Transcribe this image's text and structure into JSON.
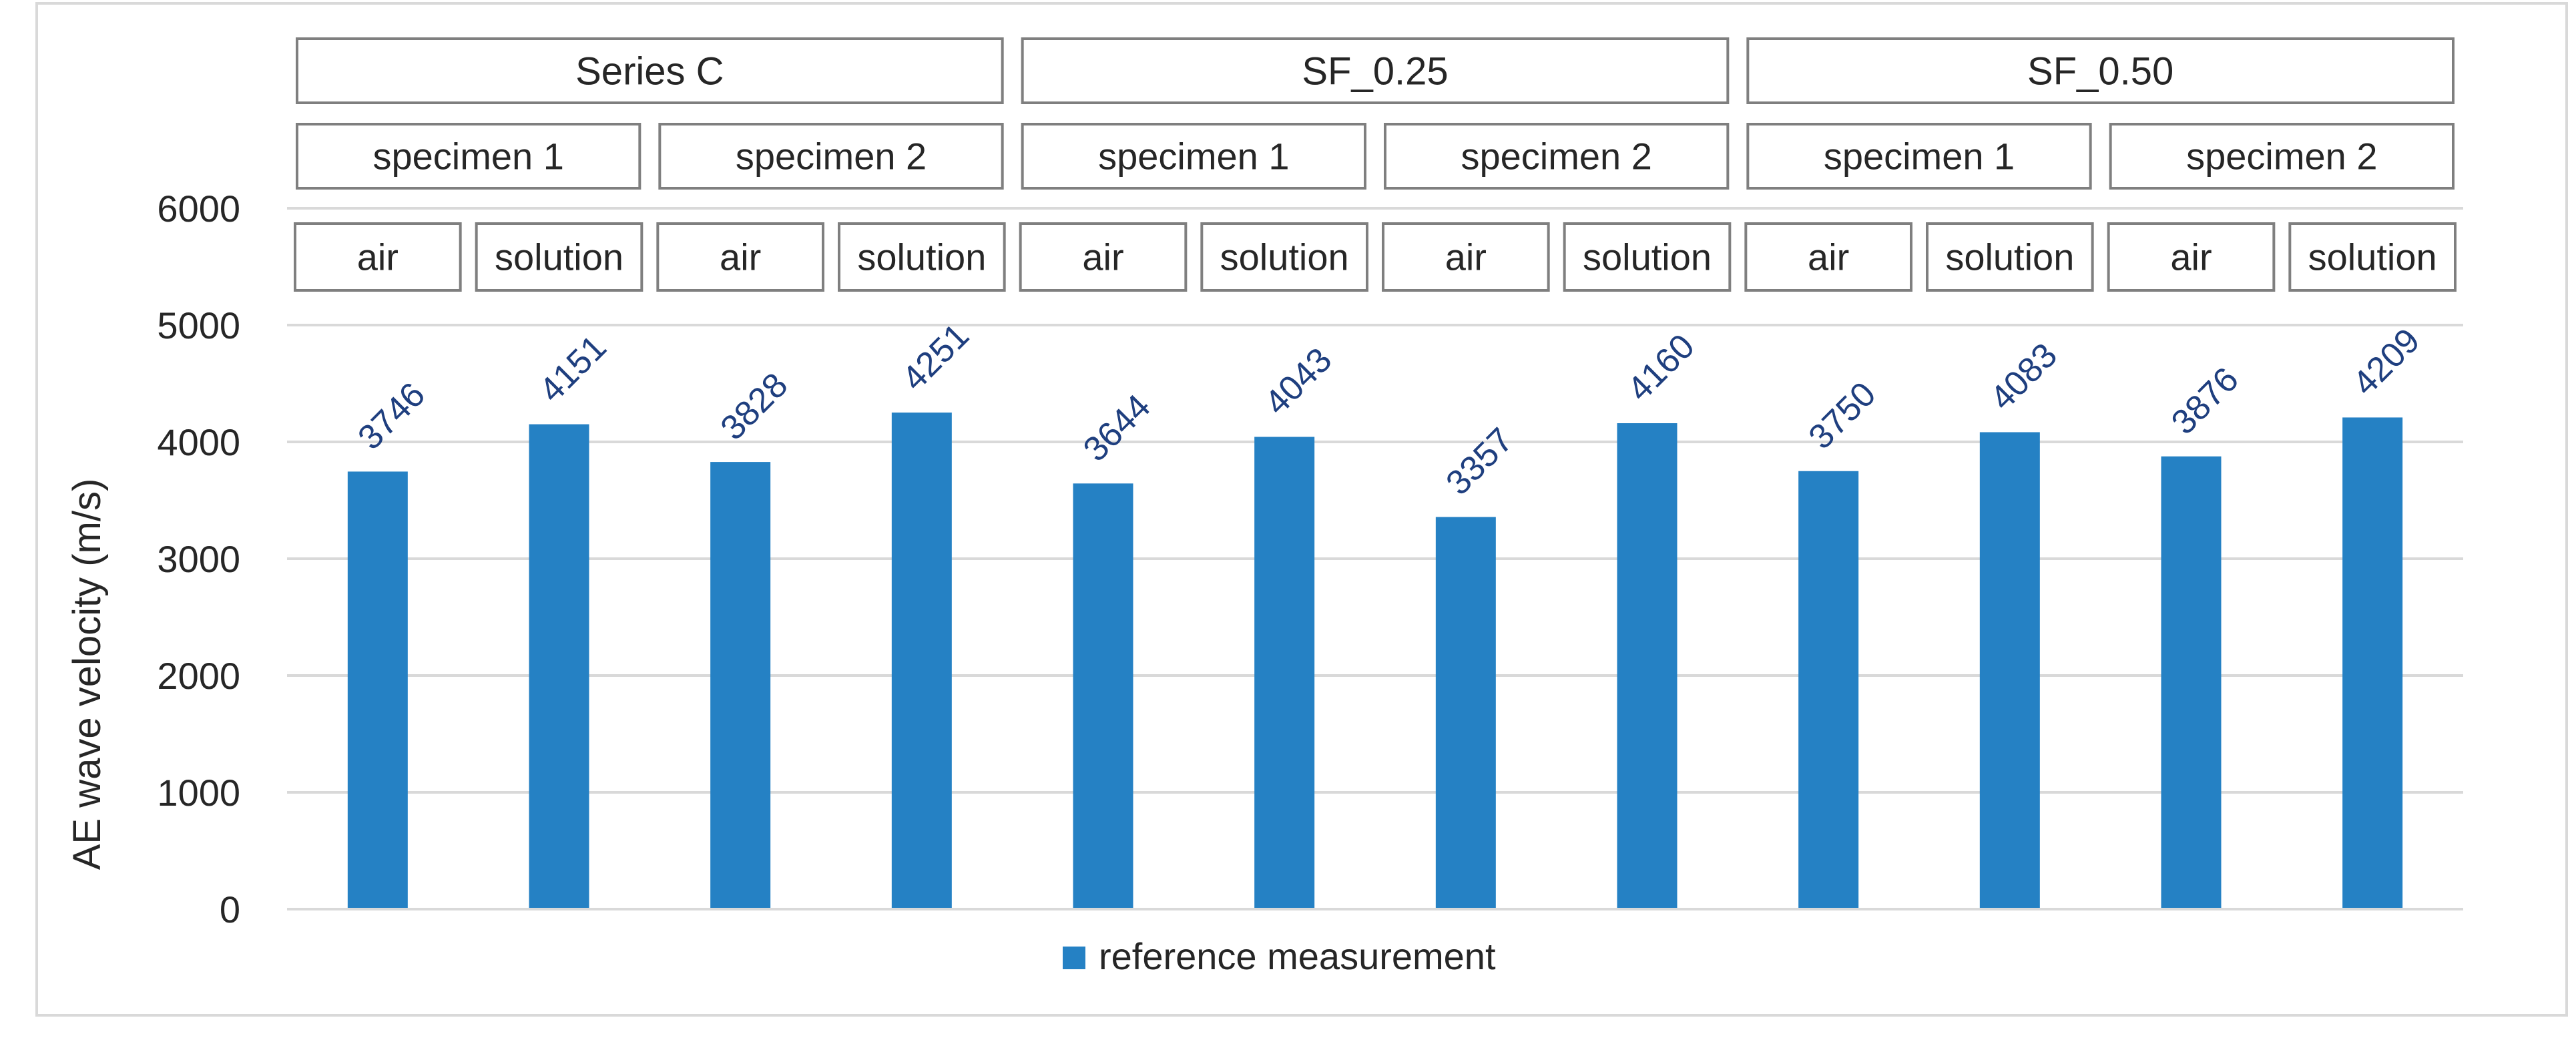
{
  "chart_data": {
    "type": "bar",
    "title": "",
    "xlabel": "",
    "ylabel": "AE wave velocity (m/s)",
    "ylim": [
      0,
      6000
    ],
    "yticks": [
      "0",
      "1000",
      "2000",
      "3000",
      "4000",
      "5000",
      "6000"
    ],
    "grid": true,
    "legend_position": "bottom",
    "series": [
      {
        "name": "reference measurement",
        "color": "#2581c4",
        "values": [
          3746,
          4151,
          3828,
          4251,
          3644,
          4043,
          3357,
          4160,
          3750,
          4083,
          3876,
          4209
        ],
        "labels": [
          "3746",
          "4151",
          "3828",
          "4251",
          "3644",
          "4043",
          "3357",
          "4160",
          "3750",
          "4083",
          "3876",
          "4209"
        ]
      }
    ],
    "label_color": "#1f3f7f",
    "category_hierarchy": {
      "series_level": [
        "Series C",
        "SF_0.25",
        "SF_0.50"
      ],
      "specimen_level": [
        "specimen 1",
        "specimen 2",
        "specimen 1",
        "specimen 2",
        "specimen 1",
        "specimen 2"
      ],
      "condition_level": [
        "air",
        "solution",
        "air",
        "solution",
        "air",
        "solution",
        "air",
        "solution",
        "air",
        "solution",
        "air",
        "solution"
      ]
    }
  }
}
